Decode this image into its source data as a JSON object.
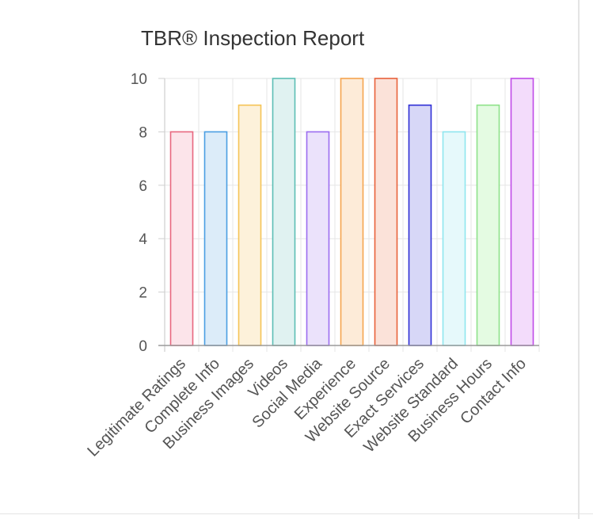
{
  "chart_data": {
    "type": "bar",
    "title": "TBR® Inspection Report",
    "xlabel": "",
    "ylabel": "",
    "ylim": [
      0,
      10
    ],
    "yticks": [
      0,
      2,
      4,
      6,
      8,
      10
    ],
    "grid": true,
    "legend": "none",
    "categories": [
      "Legitimate Ratings",
      "Complete Info",
      "Business Images",
      "Videos",
      "Social Media",
      "Experience",
      "Website Source",
      "Exact Services",
      "Website Standard",
      "Business Hours",
      "Contact Info"
    ],
    "values": [
      8,
      8,
      9,
      10,
      8,
      10,
      10,
      9,
      8,
      9,
      10
    ],
    "colors": [
      {
        "fill": "#fce4ea",
        "stroke": "#e8677f"
      },
      {
        "fill": "#dcecf9",
        "stroke": "#4a9ee3"
      },
      {
        "fill": "#fdf1da",
        "stroke": "#f5c455"
      },
      {
        "fill": "#e0f2f1",
        "stroke": "#5cbeb5"
      },
      {
        "fill": "#ebe2fb",
        "stroke": "#9b6cf0"
      },
      {
        "fill": "#fdebd8",
        "stroke": "#f5a44f"
      },
      {
        "fill": "#fbe2d9",
        "stroke": "#e8613a"
      },
      {
        "fill": "#d7d7f7",
        "stroke": "#2f2fd6"
      },
      {
        "fill": "#e6f9fb",
        "stroke": "#8ee6ef"
      },
      {
        "fill": "#e4fbe2",
        "stroke": "#8ee28a"
      },
      {
        "fill": "#f3dcfb",
        "stroke": "#bf4be8"
      }
    ]
  }
}
